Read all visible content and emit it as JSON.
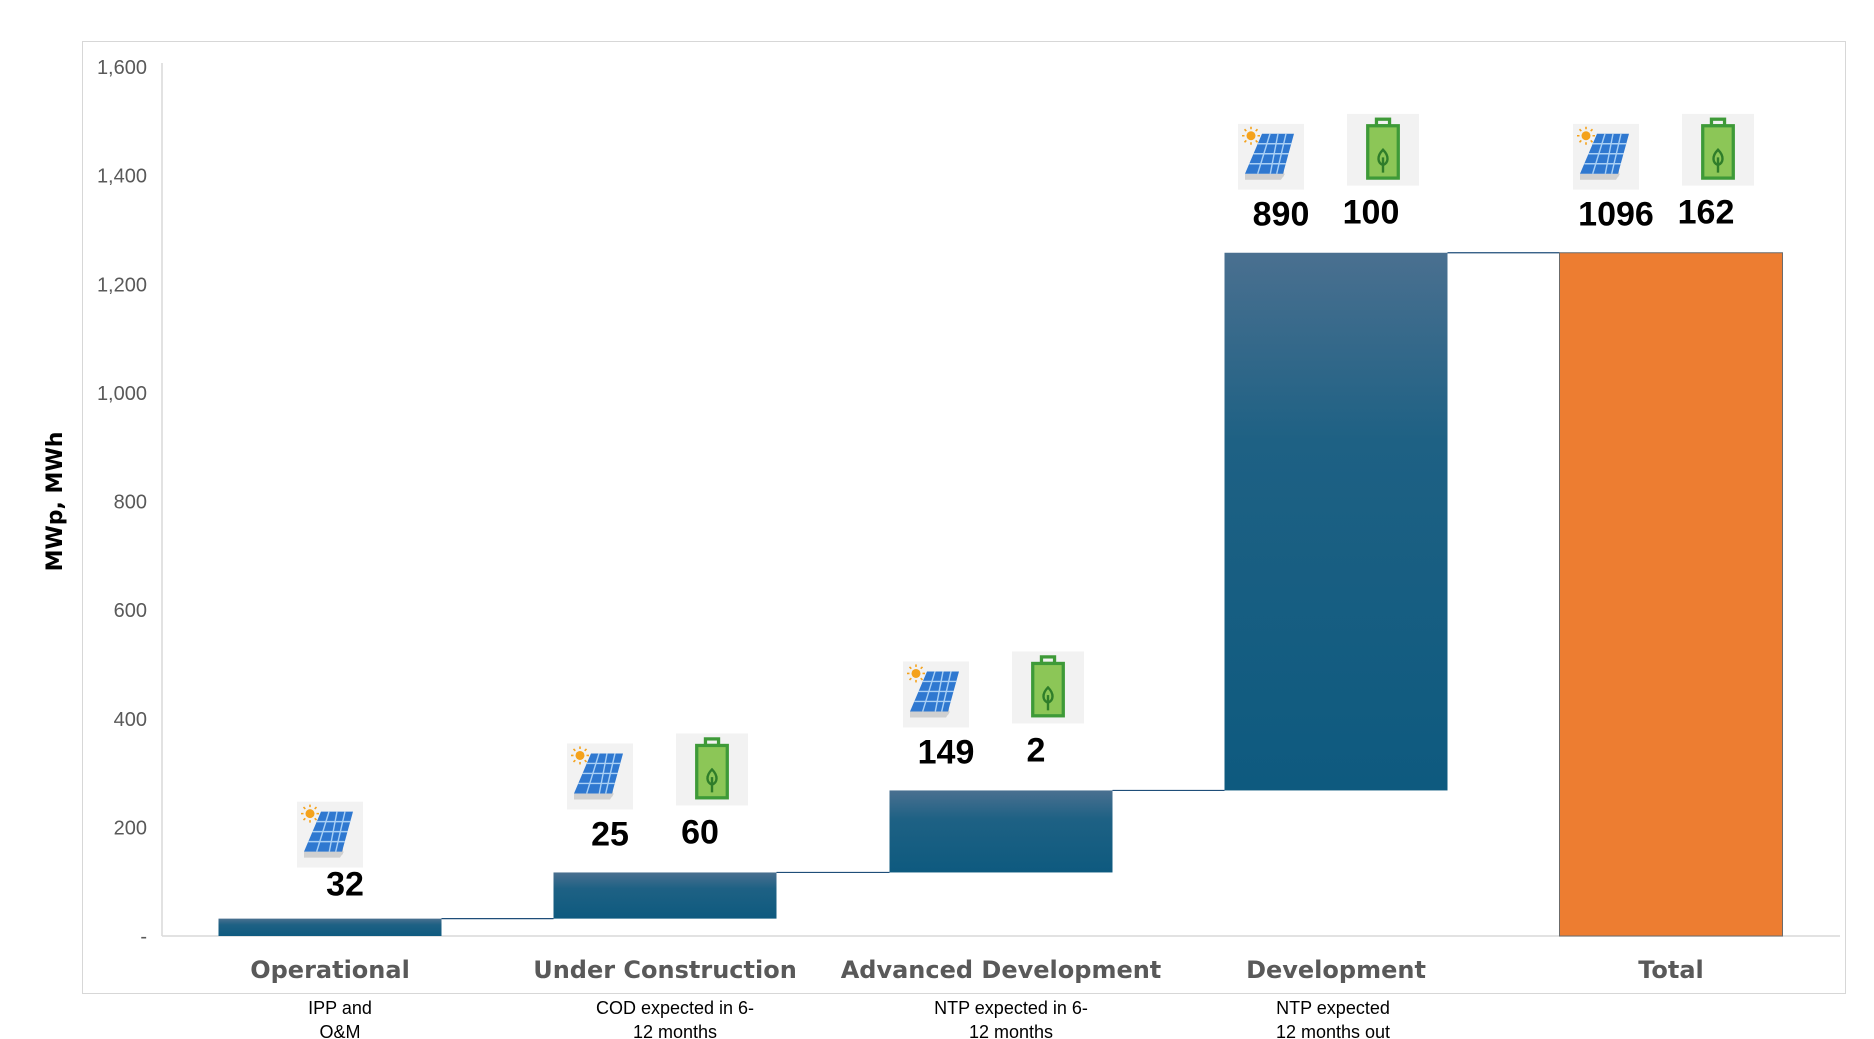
{
  "chart_data": {
    "type": "waterfall",
    "ylabel": "MWp, MWh",
    "ylim": [
      0,
      1600
    ],
    "yticks": [
      {
        "value": 0,
        "label": "-"
      },
      {
        "value": 200,
        "label": "200"
      },
      {
        "value": 400,
        "label": "400"
      },
      {
        "value": 600,
        "label": "600"
      },
      {
        "value": 800,
        "label": "800"
      },
      {
        "value": 1000,
        "label": "1,000"
      },
      {
        "value": 1200,
        "label": "1,200"
      },
      {
        "value": 1400,
        "label": "1,400"
      },
      {
        "value": 1600,
        "label": "1,600"
      }
    ],
    "colors": {
      "step": "#0e5a7f",
      "step_top": "#4a7090",
      "total": "#ed7d31",
      "connector": "#1f4e79"
    },
    "categories": [
      {
        "name": "Operational",
        "subtitle": [
          "IPP and",
          "O&M"
        ],
        "base": 0,
        "top": 32,
        "solar_mwp": "32",
        "storage_mwh": null,
        "is_total": false
      },
      {
        "name": "Under Construction",
        "subtitle": [
          "COD expected in 6-",
          "12 months"
        ],
        "base": 32,
        "top": 117,
        "solar_mwp": "25",
        "storage_mwh": "60",
        "is_total": false
      },
      {
        "name": "Advanced Development",
        "subtitle": [
          "NTP expected in 6-",
          "12 months"
        ],
        "base": 117,
        "top": 268,
        "solar_mwp": "149",
        "storage_mwh": "2",
        "is_total": false
      },
      {
        "name": "Development",
        "subtitle": [
          "NTP expected",
          "12 months out"
        ],
        "base": 268,
        "top": 1258,
        "solar_mwp": "890",
        "storage_mwh": "100",
        "is_total": false
      },
      {
        "name": "Total",
        "subtitle": [],
        "base": 0,
        "top": 1258,
        "solar_mwp": "1096",
        "storage_mwh": "162",
        "is_total": true
      }
    ],
    "icons": {
      "solar": "solar-panel-icon",
      "storage": "battery-leaf-icon"
    }
  }
}
